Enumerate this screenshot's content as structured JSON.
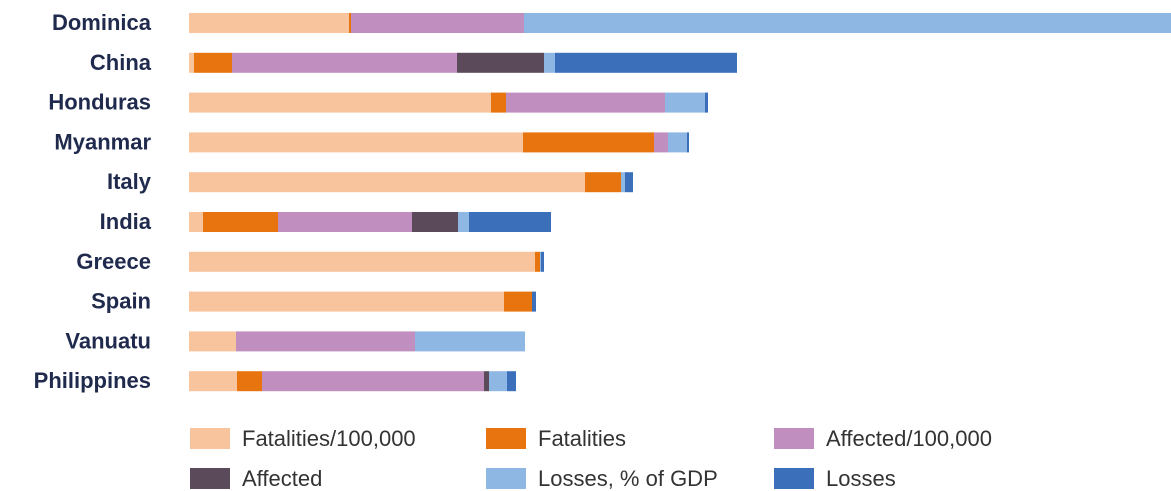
{
  "chart_data": {
    "type": "bar",
    "orientation": "horizontal",
    "stacked": true,
    "categories": [
      "Dominica",
      "China",
      "Honduras",
      "Myanmar",
      "Italy",
      "India",
      "Greece",
      "Spain",
      "Vanuatu",
      "Philippines"
    ],
    "series": [
      {
        "name": "Fatalities/100,000",
        "color": "#f8c49e",
        "values": [
          160,
          5,
          302,
          334,
          396,
          14,
          346,
          315,
          47,
          48
        ]
      },
      {
        "name": "Fatalities",
        "color": "#e8740f",
        "values": [
          2,
          38,
          15,
          131,
          36,
          75,
          5,
          28,
          0,
          25
        ]
      },
      {
        "name": "Affected/100,000",
        "color": "#c08fc0",
        "values": [
          173,
          225,
          159,
          14,
          0,
          134,
          0,
          0,
          179,
          222
        ]
      },
      {
        "name": "Affected",
        "color": "#5a4a5a",
        "values": [
          0,
          87,
          0,
          0,
          0,
          46,
          0,
          0,
          0,
          5
        ]
      },
      {
        "name": "Losses, % of GDP",
        "color": "#8fb7e3",
        "values": [
          647,
          11,
          40,
          19,
          4,
          11,
          1,
          0,
          110,
          18
        ]
      },
      {
        "name": "Losses",
        "color": "#3b6fba",
        "values": [
          0,
          182,
          3,
          2,
          8,
          82,
          3,
          4,
          0,
          9
        ]
      }
    ],
    "xlim": [
      0,
      982
    ],
    "axis_visible": false,
    "grid": false,
    "legend_position": "bottom",
    "legend_columns": 3
  }
}
